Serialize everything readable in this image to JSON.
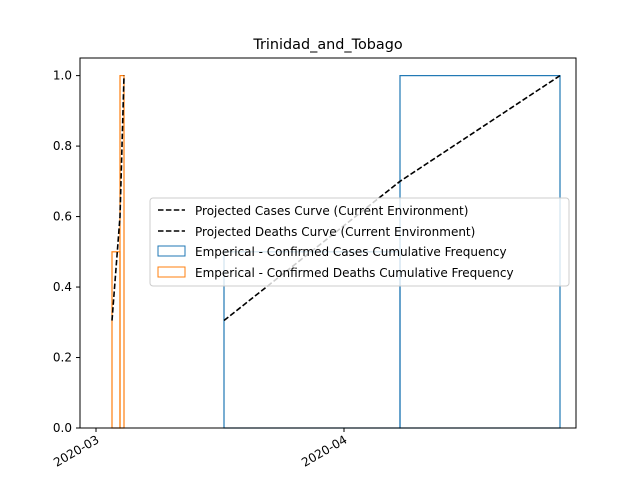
{
  "chart_data": {
    "type": "line",
    "title": "Trinidad_and_Tobago",
    "xlabel": "",
    "ylabel": "",
    "x_axis": {
      "type": "date",
      "range": [
        "2020-02-28",
        "2020-04-30"
      ],
      "ticks": [
        {
          "date": "2020-03-01",
          "label": "2020-03"
        },
        {
          "date": "2020-04-01",
          "label": "2020-04"
        }
      ]
    },
    "y_axis": {
      "range": [
        0.0,
        1.05
      ],
      "ticks": [
        0.0,
        0.2,
        0.4,
        0.6,
        0.8,
        1.0
      ],
      "tick_labels": [
        "0.0",
        "0.2",
        "0.4",
        "0.6",
        "0.8",
        "1.0"
      ]
    },
    "grid": false,
    "legend_placement": "center-right",
    "series": [
      {
        "name": "Projected Cases Curve (Current Environment)",
        "kind": "line",
        "style": "dashed",
        "color": "#000000",
        "points": [
          {
            "x": "2020-03-17",
            "y": 0.305
          },
          {
            "x": "2020-04-08",
            "y": 0.7
          },
          {
            "x": "2020-04-28",
            "y": 1.0
          }
        ]
      },
      {
        "name": "Projected Deaths Curve (Current Environment)",
        "kind": "line",
        "style": "dashed",
        "color": "#000000",
        "points": [
          {
            "x": "2020-03-03",
            "y": 0.305
          },
          {
            "x": "2020-03-04",
            "y": 0.6
          },
          {
            "x": "2020-03-04.5",
            "y": 1.0
          }
        ]
      },
      {
        "name": "Emperical - Confirmed Cases Cumulative Frequency",
        "kind": "step",
        "color": "#1f77b4",
        "steps": [
          {
            "x_start": "2020-03-17",
            "x_end": "2020-04-08",
            "y": 0.5
          },
          {
            "x_start": "2020-04-08",
            "x_end": "2020-04-28",
            "y": 1.0
          }
        ]
      },
      {
        "name": "Emperical - Confirmed Deaths Cumulative Frequency",
        "kind": "step",
        "color": "#ff7f0e",
        "steps": [
          {
            "x_start": "2020-03-03",
            "x_end": "2020-03-04",
            "y": 0.5
          },
          {
            "x_start": "2020-03-04",
            "x_end": "2020-03-04.5",
            "y": 1.0
          }
        ]
      }
    ]
  }
}
